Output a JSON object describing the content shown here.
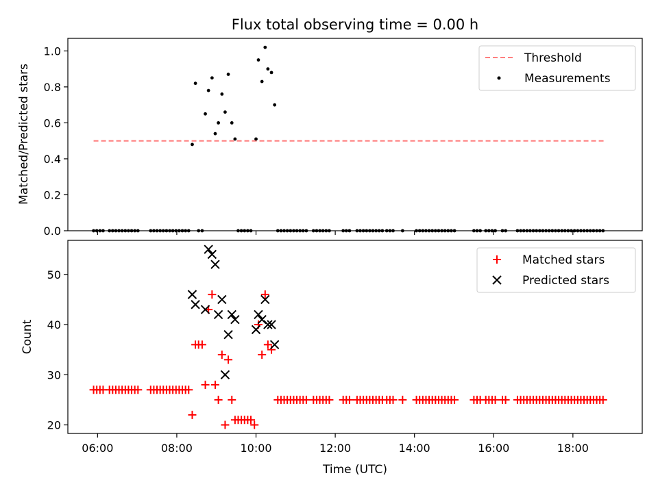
{
  "chart_data": [
    {
      "type": "scatter",
      "title": "Flux total observing time = 0.00 h",
      "xlabel": "",
      "ylabel": "Matched/Predicted stars",
      "xlim": [
        5.25,
        19.75
      ],
      "ylim": [
        0.0,
        1.07
      ],
      "yticks": [
        0.0,
        0.2,
        0.4,
        0.6,
        0.8,
        1.0
      ],
      "ytick_labels": [
        "0.0",
        "0.2",
        "0.4",
        "0.6",
        "0.8",
        "1.0"
      ],
      "xticks": [
        6,
        8,
        10,
        12,
        14,
        16,
        18
      ],
      "grid": false,
      "legend_position": "top-right",
      "threshold": {
        "name": "Threshold",
        "value": 0.5,
        "x_range": [
          5.9,
          18.8
        ],
        "color": "#ff7f7f"
      },
      "measurements": {
        "name": "Measurements",
        "color": "#000000",
        "high_points": [
          {
            "x": 8.39,
            "y": 0.48
          },
          {
            "x": 8.47,
            "y": 0.82
          },
          {
            "x": 8.72,
            "y": 0.65
          },
          {
            "x": 8.8,
            "y": 0.78
          },
          {
            "x": 8.89,
            "y": 0.85
          },
          {
            "x": 8.97,
            "y": 0.54
          },
          {
            "x": 9.05,
            "y": 0.6
          },
          {
            "x": 9.14,
            "y": 0.76
          },
          {
            "x": 9.22,
            "y": 0.66
          },
          {
            "x": 9.3,
            "y": 0.87
          },
          {
            "x": 9.39,
            "y": 0.6
          },
          {
            "x": 9.47,
            "y": 0.51
          },
          {
            "x": 10.0,
            "y": 0.51
          },
          {
            "x": 10.06,
            "y": 0.95
          },
          {
            "x": 10.15,
            "y": 0.83
          },
          {
            "x": 10.23,
            "y": 1.02
          },
          {
            "x": 10.3,
            "y": 0.9
          },
          {
            "x": 10.39,
            "y": 0.88
          },
          {
            "x": 10.47,
            "y": 0.7
          }
        ],
        "zero_y": 0.0,
        "zero_x": [
          5.9,
          5.98,
          6.06,
          6.14,
          6.3,
          6.38,
          6.46,
          6.54,
          6.62,
          6.7,
          6.78,
          6.86,
          6.94,
          7.02,
          7.34,
          7.42,
          7.5,
          7.58,
          7.66,
          7.74,
          7.82,
          7.9,
          7.98,
          8.06,
          8.14,
          8.22,
          8.3,
          8.55,
          8.64,
          9.55,
          9.63,
          9.71,
          9.79,
          9.87,
          10.55,
          10.63,
          10.71,
          10.79,
          10.87,
          10.95,
          11.03,
          11.11,
          11.19,
          11.27,
          11.45,
          11.53,
          11.61,
          11.69,
          11.77,
          11.85,
          12.2,
          12.28,
          12.36,
          12.55,
          12.63,
          12.71,
          12.79,
          12.87,
          12.95,
          13.03,
          13.11,
          13.19,
          13.3,
          13.38,
          13.46,
          13.7,
          14.05,
          14.13,
          14.21,
          14.29,
          14.37,
          14.45,
          14.53,
          14.61,
          14.69,
          14.77,
          14.85,
          14.93,
          15.01,
          15.5,
          15.58,
          15.66,
          15.8,
          15.88,
          15.96,
          16.04,
          16.22,
          16.3,
          16.6,
          16.68,
          16.76,
          16.84,
          16.92,
          17.0,
          17.08,
          17.16,
          17.24,
          17.32,
          17.4,
          17.48,
          17.56,
          17.64,
          17.72,
          17.8,
          17.88,
          17.96,
          18.04,
          18.12,
          18.2,
          18.28,
          18.36,
          18.44,
          18.52,
          18.6,
          18.68,
          18.76
        ]
      }
    },
    {
      "type": "scatter",
      "title": "",
      "xlabel": "Time (UTC)",
      "ylabel": "Count",
      "xlim": [
        5.25,
        19.75
      ],
      "ylim": [
        18.3,
        56.8
      ],
      "yticks": [
        20,
        30,
        40,
        50
      ],
      "ytick_labels": [
        "20",
        "30",
        "40",
        "50"
      ],
      "xticks": [
        6,
        8,
        10,
        12,
        14,
        16,
        18
      ],
      "xtick_labels": [
        "06:00",
        "08:00",
        "10:00",
        "12:00",
        "14:00",
        "16:00",
        "18:00"
      ],
      "grid": false,
      "legend_position": "top-right",
      "series": [
        {
          "name": "Matched stars",
          "marker": "+",
          "color": "#ff0000",
          "points": [
            {
              "x": 8.39,
              "y": 22
            },
            {
              "x": 8.47,
              "y": 36
            },
            {
              "x": 8.55,
              "y": 36
            },
            {
              "x": 8.64,
              "y": 36
            },
            {
              "x": 8.72,
              "y": 28
            },
            {
              "x": 8.8,
              "y": 43
            },
            {
              "x": 8.89,
              "y": 46
            },
            {
              "x": 8.97,
              "y": 28
            },
            {
              "x": 9.05,
              "y": 25
            },
            {
              "x": 9.14,
              "y": 34
            },
            {
              "x": 9.22,
              "y": 20
            },
            {
              "x": 9.3,
              "y": 33
            },
            {
              "x": 9.39,
              "y": 25
            },
            {
              "x": 9.47,
              "y": 21
            },
            {
              "x": 9.55,
              "y": 21
            },
            {
              "x": 9.63,
              "y": 21
            },
            {
              "x": 9.71,
              "y": 21
            },
            {
              "x": 9.79,
              "y": 21
            },
            {
              "x": 9.87,
              "y": 21
            },
            {
              "x": 9.96,
              "y": 20
            },
            {
              "x": 10.06,
              "y": 40
            },
            {
              "x": 10.15,
              "y": 34
            },
            {
              "x": 10.23,
              "y": 46
            },
            {
              "x": 10.3,
              "y": 36
            },
            {
              "x": 10.39,
              "y": 35
            }
          ],
          "constant_runs": [
            {
              "y": 27,
              "x": [
                5.9,
                5.98,
                6.06,
                6.14,
                6.3,
                6.38,
                6.46,
                6.54,
                6.62,
                6.7,
                6.78,
                6.86,
                6.94,
                7.02,
                7.34,
                7.42,
                7.5,
                7.58,
                7.66,
                7.74,
                7.82,
                7.9,
                7.98,
                8.06,
                8.14,
                8.22,
                8.3
              ]
            },
            {
              "y": 25,
              "x": [
                10.55,
                10.63,
                10.71,
                10.79,
                10.87,
                10.95,
                11.03,
                11.11,
                11.19,
                11.27,
                11.45,
                11.53,
                11.61,
                11.69,
                11.77,
                11.85,
                12.2,
                12.28,
                12.36,
                12.55,
                12.63,
                12.71,
                12.79,
                12.87,
                12.95,
                13.03,
                13.11,
                13.19,
                13.3,
                13.38,
                13.46,
                13.7,
                14.05,
                14.13,
                14.21,
                14.29,
                14.37,
                14.45,
                14.53,
                14.61,
                14.69,
                14.77,
                14.85,
                14.93,
                15.01,
                15.5,
                15.58,
                15.66,
                15.8,
                15.88,
                15.96,
                16.04,
                16.22,
                16.3,
                16.6,
                16.68,
                16.76,
                16.84,
                16.92,
                17.0,
                17.08,
                17.16,
                17.24,
                17.32,
                17.4,
                17.48,
                17.56,
                17.64,
                17.72,
                17.8,
                17.88,
                17.96,
                18.04,
                18.12,
                18.2,
                18.28,
                18.36,
                18.44,
                18.52,
                18.6,
                18.68,
                18.76
              ]
            }
          ]
        },
        {
          "name": "Predicted stars",
          "marker": "x",
          "color": "#000000",
          "points": [
            {
              "x": 8.39,
              "y": 46
            },
            {
              "x": 8.47,
              "y": 44
            },
            {
              "x": 8.72,
              "y": 43
            },
            {
              "x": 8.8,
              "y": 55
            },
            {
              "x": 8.89,
              "y": 54
            },
            {
              "x": 8.97,
              "y": 52
            },
            {
              "x": 9.05,
              "y": 42
            },
            {
              "x": 9.14,
              "y": 45
            },
            {
              "x": 9.22,
              "y": 30
            },
            {
              "x": 9.3,
              "y": 38
            },
            {
              "x": 9.39,
              "y": 42
            },
            {
              "x": 9.47,
              "y": 41
            },
            {
              "x": 10.0,
              "y": 39
            },
            {
              "x": 10.06,
              "y": 42
            },
            {
              "x": 10.15,
              "y": 41
            },
            {
              "x": 10.23,
              "y": 45
            },
            {
              "x": 10.3,
              "y": 40
            },
            {
              "x": 10.39,
              "y": 40
            },
            {
              "x": 10.47,
              "y": 36
            }
          ]
        }
      ]
    }
  ]
}
